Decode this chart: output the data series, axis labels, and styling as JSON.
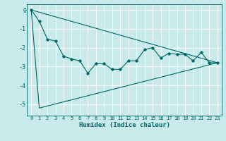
{
  "xlabel": "Humidex (Indice chaleur)",
  "ylabel": "",
  "background_color": "#c8eaea",
  "line_color": "#006666",
  "grid_color": "#ffffff",
  "xlim": [
    -0.5,
    23.5
  ],
  "ylim": [
    -5.6,
    0.3
  ],
  "yticks": [
    0,
    -1,
    -2,
    -3,
    -4,
    -5
  ],
  "xticks": [
    0,
    1,
    2,
    3,
    4,
    5,
    6,
    7,
    8,
    9,
    10,
    11,
    12,
    13,
    14,
    15,
    16,
    17,
    18,
    19,
    20,
    21,
    22,
    23
  ],
  "series1_x": [
    0,
    1,
    2,
    3,
    4,
    5,
    6,
    7,
    8,
    9,
    10,
    11,
    12,
    13,
    14,
    15,
    16,
    17,
    18,
    19,
    20,
    21,
    22,
    23
  ],
  "series1_y": [
    0.0,
    -0.6,
    -1.55,
    -1.65,
    -2.45,
    -2.6,
    -2.7,
    -3.35,
    -2.85,
    -2.85,
    -3.15,
    -3.15,
    -2.7,
    -2.7,
    -2.1,
    -2.0,
    -2.55,
    -2.3,
    -2.35,
    -2.35,
    -2.7,
    -2.25,
    -2.8,
    -2.8
  ],
  "series2_x": [
    0,
    1,
    23
  ],
  "series2_y": [
    0.0,
    -5.2,
    -2.8
  ],
  "series3_x": [
    0,
    23
  ],
  "series3_y": [
    0.0,
    -2.8
  ]
}
